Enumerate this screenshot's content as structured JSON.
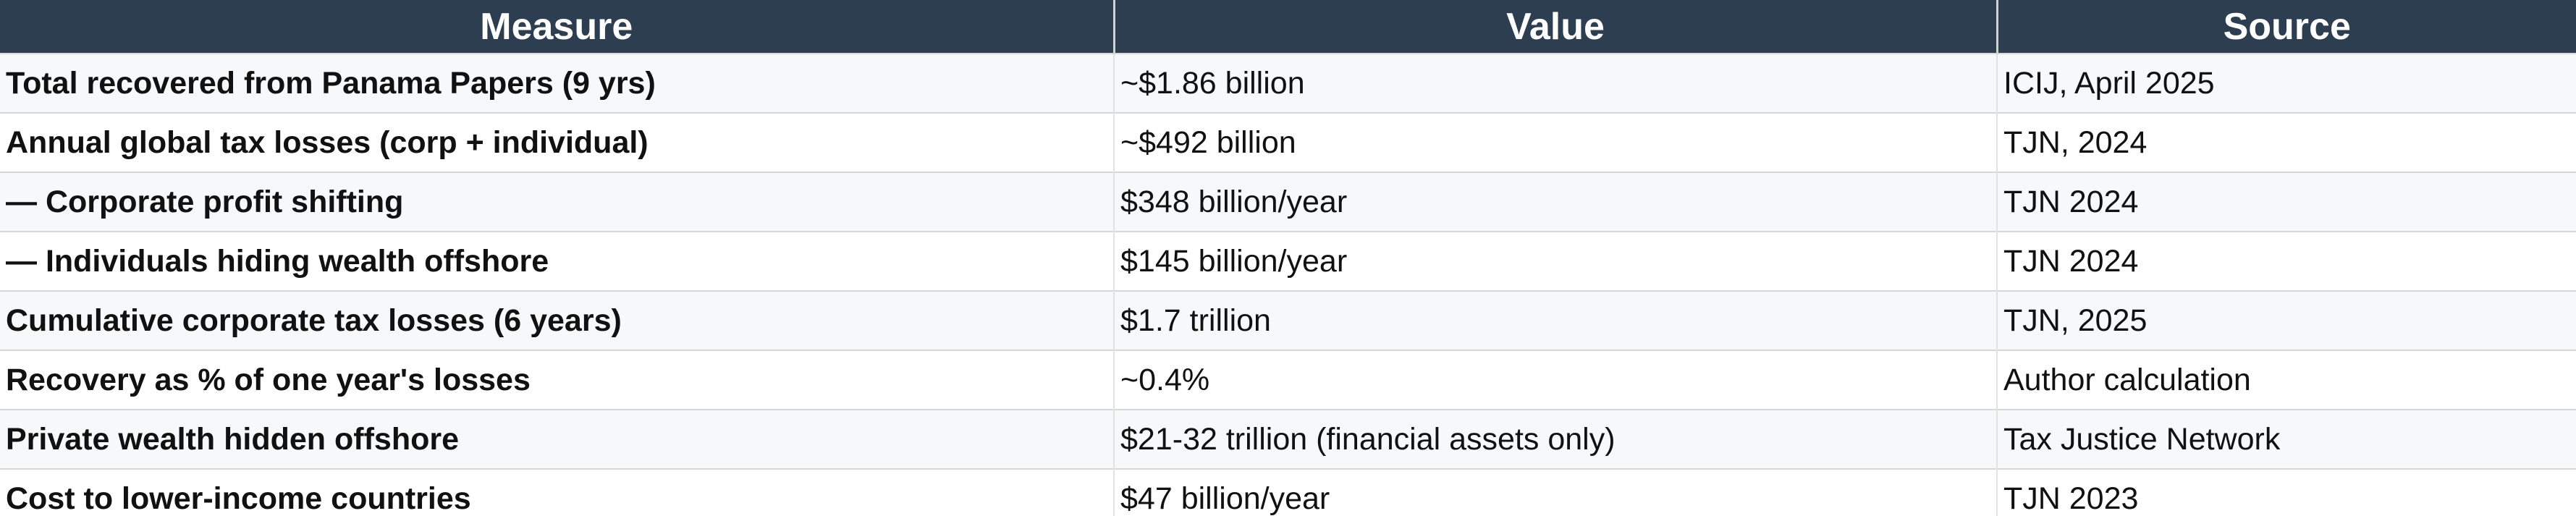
{
  "table": {
    "columns": [
      {
        "label": "Measure"
      },
      {
        "label": "Value"
      },
      {
        "label": "Source"
      }
    ],
    "rows": [
      {
        "measure": "Total recovered from Panama Papers (9 yrs)",
        "value": "~$1.86 billion",
        "source": "ICIJ, April 2025"
      },
      {
        "measure": "Annual global tax losses (corp + individual)",
        "value": "~$492 billion",
        "source": "TJN, 2024"
      },
      {
        "measure": "— Corporate profit shifting",
        "value": "$348 billion/year",
        "source": "TJN 2024"
      },
      {
        "measure": "— Individuals hiding wealth offshore",
        "value": "$145 billion/year",
        "source": "TJN 2024"
      },
      {
        "measure": "Cumulative corporate tax losses (6 years)",
        "value": "$1.7 trillion",
        "source": "TJN, 2025"
      },
      {
        "measure": "Recovery as % of one year's losses",
        "value": "~0.4%",
        "source": "Author calculation"
      },
      {
        "measure": "Private wealth hidden offshore",
        "value": "$21-32 trillion (financial assets only)",
        "source": "Tax Justice Network"
      },
      {
        "measure": "Cost to lower-income countries",
        "value": "$47 billion/year",
        "source": "TJN 2023"
      }
    ],
    "colors": {
      "header_bg": "#2d3e50",
      "header_text": "#ffffff",
      "row_stripe_bg": "#f7f8f9",
      "row_bg": "#ffffff",
      "border": "#d5d7d9",
      "body_text": "#111111"
    }
  }
}
